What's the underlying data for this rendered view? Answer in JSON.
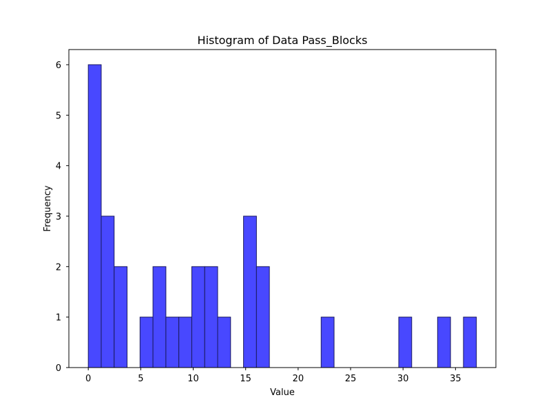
{
  "chart_data": {
    "type": "bar",
    "title": "Histogram of Data Pass_Blocks",
    "xlabel": "Value",
    "ylabel": "Frequency",
    "xlim": [
      -1.85,
      38.85
    ],
    "ylim": [
      0,
      6.3
    ],
    "x_ticks": [
      0,
      5,
      10,
      15,
      20,
      25,
      30,
      35
    ],
    "y_ticks": [
      0,
      1,
      2,
      3,
      4,
      5,
      6
    ],
    "bin_start": 0,
    "bin_width": 1.233,
    "values": [
      6,
      3,
      2,
      0,
      1,
      2,
      1,
      1,
      2,
      2,
      1,
      0,
      3,
      2,
      0,
      0,
      0,
      0,
      1,
      0,
      0,
      0,
      0,
      0,
      1,
      0,
      0,
      1,
      0,
      1
    ],
    "bar_color": "#4848ff",
    "edge_color": "#1a1a5e",
    "grid": false
  }
}
